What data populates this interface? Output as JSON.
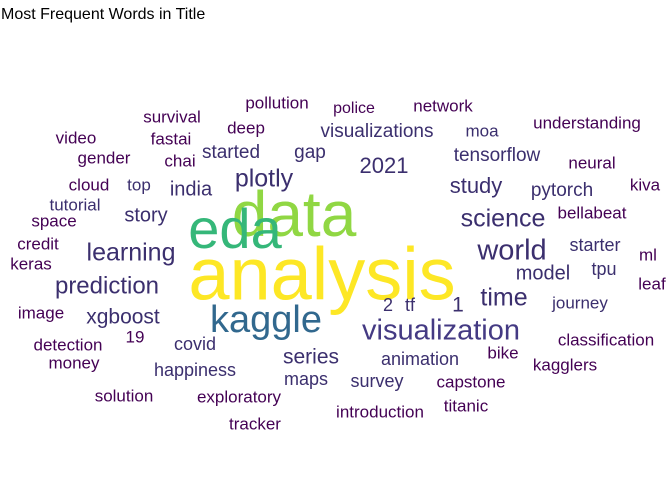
{
  "chart_data": {
    "type": "wordcloud",
    "title": "Most Frequent Words in Title",
    "colors": {
      "analysis": "#fde725",
      "data": "#90d743",
      "eda": "#35b779",
      "kaggle": "#31688e",
      "visualization": "#443a83",
      "dark_purple": "#440154",
      "indigo": "#3b2f6e"
    },
    "words": [
      {
        "text": "analysis",
        "weight": 100,
        "color": "#fde725"
      },
      {
        "text": "data",
        "weight": 80,
        "color": "#90d743"
      },
      {
        "text": "eda",
        "weight": 70,
        "color": "#35b779"
      },
      {
        "text": "kaggle",
        "weight": 48,
        "color": "#31688e"
      },
      {
        "text": "visualization",
        "weight": 34,
        "color": "#443a83"
      },
      {
        "text": "world",
        "weight": 30,
        "color": "#3b2f6e"
      },
      {
        "text": "science",
        "weight": 27,
        "color": "#3b2f6e"
      },
      {
        "text": "learning",
        "weight": 27,
        "color": "#3b2f6e"
      },
      {
        "text": "time",
        "weight": 25,
        "color": "#3b2f6e"
      },
      {
        "text": "prediction",
        "weight": 25,
        "color": "#3b2f6e"
      },
      {
        "text": "plotly",
        "weight": 24,
        "color": "#3b2f6e"
      },
      {
        "text": "study",
        "weight": 23,
        "color": "#3b2f6e"
      },
      {
        "text": "2021",
        "weight": 22,
        "color": "#3b2f6e"
      },
      {
        "text": "xgboost",
        "weight": 21,
        "color": "#3b2f6e"
      },
      {
        "text": "series",
        "weight": 21,
        "color": "#3b2f6e"
      },
      {
        "text": "model",
        "weight": 20,
        "color": "#3b2f6e"
      },
      {
        "text": "visualizations",
        "weight": 20,
        "color": "#3b2f6e"
      },
      {
        "text": "india",
        "weight": 20,
        "color": "#3b2f6e"
      },
      {
        "text": "story",
        "weight": 20,
        "color": "#3b2f6e"
      },
      {
        "text": "tensorflow",
        "weight": 20,
        "color": "#3b2f6e"
      },
      {
        "text": "started",
        "weight": 19,
        "color": "#3b2f6e"
      },
      {
        "text": "gap",
        "weight": 19,
        "color": "#3b2f6e"
      },
      {
        "text": "1",
        "weight": 20,
        "color": "#3b2f6e"
      },
      {
        "text": "2",
        "weight": 19,
        "color": "#3b2f6e"
      },
      {
        "text": "tf",
        "weight": 19,
        "color": "#3b2f6e"
      },
      {
        "text": "pytorch",
        "weight": 19,
        "color": "#3b2f6e"
      },
      {
        "text": "happiness",
        "weight": 19,
        "color": "#3b2f6e"
      },
      {
        "text": "animation",
        "weight": 19,
        "color": "#3b2f6e"
      },
      {
        "text": "maps",
        "weight": 19,
        "color": "#3b2f6e"
      },
      {
        "text": "covid",
        "weight": 18,
        "color": "#3b2f6e"
      },
      {
        "text": "survey",
        "weight": 18,
        "color": "#3b2f6e"
      },
      {
        "text": "tpu",
        "weight": 18,
        "color": "#3b2f6e"
      },
      {
        "text": "starter",
        "weight": 18,
        "color": "#3b2f6e"
      },
      {
        "text": "journey",
        "weight": 17,
        "color": "#3b2f6e"
      },
      {
        "text": "tutorial",
        "weight": 17,
        "color": "#3b2f6e"
      },
      {
        "text": "top",
        "weight": 17,
        "color": "#3b2f6e"
      },
      {
        "text": "moa",
        "weight": 17,
        "color": "#3b2f6e"
      },
      {
        "text": "deep",
        "weight": 17,
        "color": "#440154"
      },
      {
        "text": "survival",
        "weight": 17,
        "color": "#440154"
      },
      {
        "text": "pollution",
        "weight": 17,
        "color": "#440154"
      },
      {
        "text": "police",
        "weight": 17,
        "color": "#440154"
      },
      {
        "text": "network",
        "weight": 17,
        "color": "#440154"
      },
      {
        "text": "understanding",
        "weight": 17,
        "color": "#440154"
      },
      {
        "text": "fastai",
        "weight": 17,
        "color": "#440154"
      },
      {
        "text": "video",
        "weight": 17,
        "color": "#440154"
      },
      {
        "text": "gender",
        "weight": 17,
        "color": "#440154"
      },
      {
        "text": "chai",
        "weight": 17,
        "color": "#440154"
      },
      {
        "text": "neural",
        "weight": 17,
        "color": "#440154"
      },
      {
        "text": "cloud",
        "weight": 17,
        "color": "#440154"
      },
      {
        "text": "kiva",
        "weight": 17,
        "color": "#440154"
      },
      {
        "text": "space",
        "weight": 17,
        "color": "#440154"
      },
      {
        "text": "bellabeat",
        "weight": 17,
        "color": "#440154"
      },
      {
        "text": "credit",
        "weight": 17,
        "color": "#440154"
      },
      {
        "text": "ml",
        "weight": 17,
        "color": "#440154"
      },
      {
        "text": "keras",
        "weight": 17,
        "color": "#440154"
      },
      {
        "text": "leaf",
        "weight": 17,
        "color": "#440154"
      },
      {
        "text": "image",
        "weight": 17,
        "color": "#440154"
      },
      {
        "text": "detection",
        "weight": 17,
        "color": "#440154"
      },
      {
        "text": "19",
        "weight": 17,
        "color": "#440154"
      },
      {
        "text": "classification",
        "weight": 17,
        "color": "#440154"
      },
      {
        "text": "money",
        "weight": 17,
        "color": "#440154"
      },
      {
        "text": "bike",
        "weight": 17,
        "color": "#440154"
      },
      {
        "text": "kagglers",
        "weight": 17,
        "color": "#440154"
      },
      {
        "text": "solution",
        "weight": 17,
        "color": "#440154"
      },
      {
        "text": "exploratory",
        "weight": 17,
        "color": "#440154"
      },
      {
        "text": "capstone",
        "weight": 17,
        "color": "#440154"
      },
      {
        "text": "introduction",
        "weight": 17,
        "color": "#440154"
      },
      {
        "text": "titanic",
        "weight": 17,
        "color": "#440154"
      },
      {
        "text": "tracker",
        "weight": 17,
        "color": "#440154"
      }
    ]
  }
}
